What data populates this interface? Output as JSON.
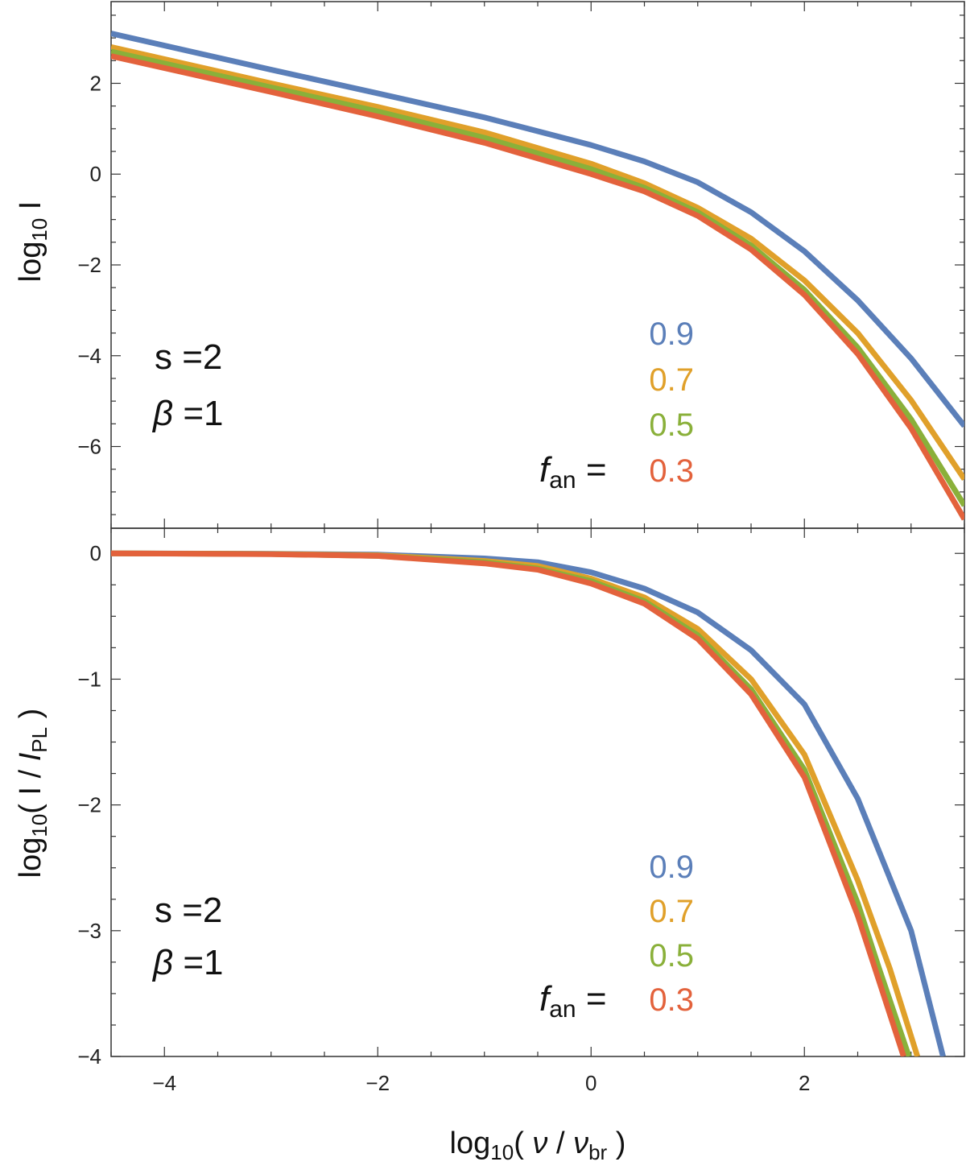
{
  "chart_data": [
    {
      "id": "top",
      "type": "line",
      "ylabel": {
        "base": "log",
        "sub": "10",
        "rest": " I"
      },
      "xlim": [
        -4.5,
        3.5
      ],
      "ylim": [
        -7.8,
        3.8
      ],
      "yticks": [
        2,
        0,
        -2,
        -4,
        -6
      ],
      "ytick_labels": [
        "2",
        "0",
        "−2",
        "−4",
        "−6"
      ],
      "annotations": {
        "s": "s =2",
        "beta_sym": "β",
        "beta_val": " =1"
      },
      "legend": {
        "prefix_f": "f",
        "prefix_sub": "an",
        "prefix_eq": " =",
        "entries": [
          {
            "label": "0.9",
            "color": "#5b7fb9"
          },
          {
            "label": "0.7",
            "color": "#e0a02a"
          },
          {
            "label": "0.5",
            "color": "#8ab03a"
          },
          {
            "label": "0.3",
            "color": "#e3623c"
          }
        ]
      },
      "series": [
        {
          "name": "0.9",
          "color": "#5b7fb9",
          "x": [
            -4.5,
            -3,
            -2,
            -1,
            0,
            0.5,
            1,
            1.5,
            2,
            2.5,
            3,
            3.5
          ],
          "y": [
            3.1,
            2.3,
            1.78,
            1.25,
            0.64,
            0.28,
            -0.18,
            -0.84,
            -1.7,
            -2.78,
            -4.06,
            -5.55
          ]
        },
        {
          "name": "0.7",
          "color": "#e0a02a",
          "x": [
            -4.5,
            -3,
            -2,
            -1,
            0,
            0.5,
            1,
            1.5,
            2,
            2.5,
            3,
            3.5
          ],
          "y": [
            2.8,
            2.0,
            1.48,
            0.92,
            0.23,
            -0.2,
            -0.74,
            -1.42,
            -2.34,
            -3.5,
            -4.98,
            -6.72
          ]
        },
        {
          "name": "0.5",
          "color": "#8ab03a",
          "x": [
            -4.5,
            -3,
            -2,
            -1,
            0,
            0.5,
            1,
            1.5,
            2,
            2.5,
            3,
            3.5
          ],
          "y": [
            2.7,
            1.91,
            1.38,
            0.8,
            0.11,
            -0.3,
            -0.84,
            -1.57,
            -2.55,
            -3.82,
            -5.4,
            -7.3
          ]
        },
        {
          "name": "0.3",
          "color": "#e3623c",
          "x": [
            -4.5,
            -3,
            -2,
            -1,
            0,
            0.5,
            1,
            1.5,
            2,
            2.5,
            3,
            3.5
          ],
          "y": [
            2.6,
            1.81,
            1.27,
            0.69,
            0.0,
            -0.38,
            -0.92,
            -1.66,
            -2.66,
            -3.96,
            -5.6,
            -7.6
          ]
        }
      ]
    },
    {
      "id": "bottom",
      "type": "line",
      "ylabel": {
        "base": "log",
        "sub": "10",
        "rest": "( I / ",
        "I2": "I",
        "sub2": "PL",
        "close": " )"
      },
      "xlabel": {
        "base": "log",
        "sub": "10",
        "open": "( ",
        "nu": "ν",
        "slash": " / ",
        "nu2": "ν",
        "sub2": "br",
        "close": " )"
      },
      "xlim": [
        -4.5,
        3.5
      ],
      "ylim": [
        -4.0,
        0.2
      ],
      "xticks": [
        -4,
        -2,
        0,
        2
      ],
      "xtick_labels": [
        "−4",
        "−2",
        "0",
        "2"
      ],
      "yticks": [
        0,
        -1,
        -2,
        -3,
        -4
      ],
      "ytick_labels": [
        "0",
        "−1",
        "−2",
        "−3",
        "−4"
      ],
      "annotations": {
        "s": "s =2",
        "beta_sym": "β",
        "beta_val": " =1"
      },
      "legend": {
        "prefix_f": "f",
        "prefix_sub": "an",
        "prefix_eq": " =",
        "entries": [
          {
            "label": "0.9",
            "color": "#5b7fb9"
          },
          {
            "label": "0.7",
            "color": "#e0a02a"
          },
          {
            "label": "0.5",
            "color": "#8ab03a"
          },
          {
            "label": "0.3",
            "color": "#e3623c"
          }
        ]
      },
      "series": [
        {
          "name": "0.9",
          "color": "#5b7fb9",
          "x": [
            -4.5,
            -3,
            -2,
            -1,
            -0.5,
            0,
            0.5,
            1,
            1.5,
            2,
            2.5,
            3,
            3.3
          ],
          "y": [
            0,
            -0.003,
            -0.01,
            -0.04,
            -0.07,
            -0.15,
            -0.28,
            -0.47,
            -0.77,
            -1.2,
            -1.95,
            -3.0,
            -4.0
          ]
        },
        {
          "name": "0.7",
          "color": "#e0a02a",
          "x": [
            -4.5,
            -3,
            -2,
            -1,
            -0.5,
            0,
            0.5,
            1,
            1.5,
            2,
            2.5,
            2.8,
            3.06
          ],
          "y": [
            0,
            -0.005,
            -0.015,
            -0.06,
            -0.1,
            -0.2,
            -0.35,
            -0.6,
            -1.0,
            -1.6,
            -2.6,
            -3.3,
            -4.0
          ]
        },
        {
          "name": "0.5",
          "color": "#8ab03a",
          "x": [
            -4.5,
            -3,
            -2,
            -1,
            -0.5,
            0,
            0.5,
            1,
            1.5,
            2,
            2.5,
            2.7,
            2.98
          ],
          "y": [
            0,
            -0.005,
            -0.02,
            -0.07,
            -0.12,
            -0.22,
            -0.38,
            -0.65,
            -1.08,
            -1.72,
            -2.78,
            -3.3,
            -4.0
          ]
        },
        {
          "name": "0.3",
          "color": "#e3623c",
          "x": [
            -4.5,
            -3,
            -2,
            -1,
            -0.5,
            0,
            0.5,
            1,
            1.5,
            2,
            2.5,
            2.7,
            2.93
          ],
          "y": [
            0,
            -0.006,
            -0.02,
            -0.08,
            -0.13,
            -0.24,
            -0.4,
            -0.68,
            -1.12,
            -1.78,
            -2.88,
            -3.4,
            -4.0
          ]
        }
      ]
    }
  ]
}
